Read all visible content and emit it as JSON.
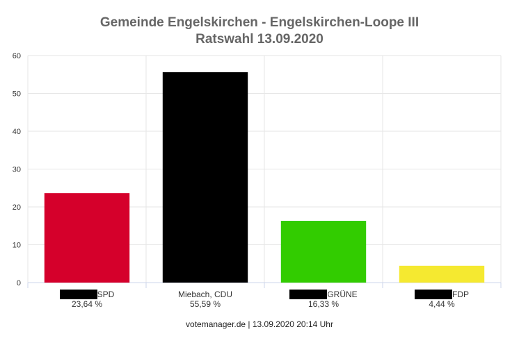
{
  "chart_data": {
    "type": "bar",
    "title": "Gemeinde Engelskirchen - Engelskirchen-Loope III",
    "subtitle": "Ratswahl 13.09.2020",
    "categories": [
      "SPD",
      "Miebach, CDU",
      "GRÜNE",
      "FDP"
    ],
    "value_labels": [
      "23,64 %",
      "55,59 %",
      "16,33 %",
      "4,44 %"
    ],
    "values": [
      23.64,
      55.59,
      16.33,
      4.44
    ],
    "colors": [
      "#d5002b",
      "#000000",
      "#32cc00",
      "#f5e930"
    ],
    "redacted_prefix": [
      true,
      false,
      true,
      true
    ],
    "ylim": [
      0,
      60
    ],
    "yticks": [
      0,
      10,
      20,
      30,
      40,
      50,
      60
    ],
    "grid": true
  },
  "footer": "votemanager.de | 13.09.2020 20:14 Uhr"
}
